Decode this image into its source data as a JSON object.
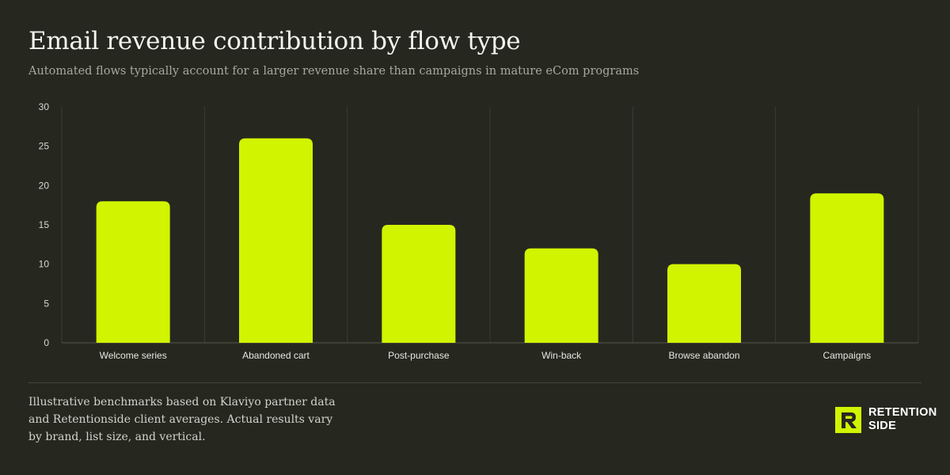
{
  "header": {
    "title": "Email revenue contribution by flow type",
    "subtitle": "Automated flows typically account for a larger revenue share than campaigns in mature eCom programs"
  },
  "chart_data": {
    "type": "bar",
    "categories": [
      "Welcome series",
      "Abandoned cart",
      "Post-purchase",
      "Win-back",
      "Browse abandon",
      "Campaigns"
    ],
    "values": [
      18,
      26,
      15,
      12,
      10,
      19
    ],
    "title": "Email revenue contribution by flow type",
    "xlabel": "",
    "ylabel": "",
    "ylim": [
      0,
      30
    ],
    "yticks": [
      0,
      5,
      10,
      15,
      20,
      25,
      30
    ],
    "grid": "vertical category separators",
    "legend": "none",
    "bar_color": "#d1f400",
    "grid_color": "#3b3d33",
    "axis_color": "#55574d"
  },
  "footer": {
    "note": "Illustrative benchmarks based on Klaviyo partner data and Retentionside client averages. Actual results vary by brand, list size, and vertical.",
    "logo_line1": "RETENTION",
    "logo_line2": "SIDE",
    "logo_color": "#d1f400"
  }
}
